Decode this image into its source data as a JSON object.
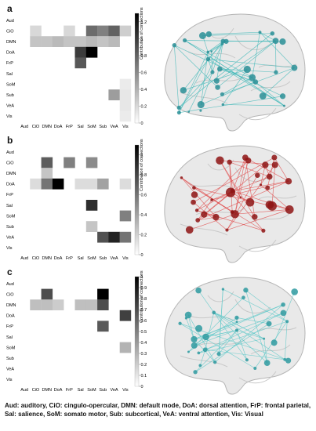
{
  "regions": [
    "Aud",
    "CiO",
    "DMN",
    "DoA",
    "FrP",
    "Sal",
    "SoM",
    "Sub",
    "VeA",
    "Vis"
  ],
  "colorbar_title": "Contribution of connections",
  "panels": [
    {
      "letter": "a",
      "ticks": [
        "0",
        "0.2",
        "0.4",
        "0.6",
        "0.8",
        "1",
        "1.2"
      ],
      "vmax": 1.3,
      "edge_color": "#3fb8b8",
      "node_color": "#2a8f96",
      "matrix": [
        [
          0,
          0,
          0,
          0,
          0,
          0,
          0,
          0,
          0,
          0
        ],
        [
          0,
          0.2,
          0,
          0,
          0.2,
          0,
          0.75,
          0.65,
          0.8,
          0.25
        ],
        [
          0,
          0.3,
          0.3,
          0.35,
          0.3,
          0.3,
          0.35,
          0.3,
          0.35,
          0
        ],
        [
          0,
          0,
          0,
          0,
          0,
          1.0,
          1.3,
          0,
          0,
          0
        ],
        [
          0,
          0,
          0,
          0,
          0,
          0.85,
          0,
          0,
          0,
          0
        ],
        [
          0,
          0,
          0,
          0,
          0,
          0,
          0,
          0,
          0,
          0
        ],
        [
          0,
          0,
          0,
          0,
          0,
          0,
          0,
          0,
          0,
          0.1
        ],
        [
          0,
          0,
          0,
          0,
          0,
          0,
          0,
          0,
          0.5,
          0.12
        ],
        [
          0,
          0,
          0,
          0,
          0,
          0,
          0,
          0,
          0,
          0.12
        ],
        [
          0,
          0,
          0,
          0,
          0,
          0,
          0,
          0,
          0,
          0.1
        ]
      ]
    },
    {
      "letter": "b",
      "ticks": [
        "0",
        "0.2",
        "0.4",
        "0.6",
        "0.8",
        "1"
      ],
      "vmax": 1.1,
      "edge_color": "#e04848",
      "node_color": "#8e1414",
      "matrix": [
        [
          0,
          0,
          0,
          0,
          0,
          0,
          0,
          0,
          0,
          0
        ],
        [
          0,
          0,
          0.7,
          0,
          0.55,
          0,
          0.5,
          0,
          0,
          0
        ],
        [
          0,
          0,
          0.25,
          0,
          0,
          0,
          0,
          0,
          0,
          0
        ],
        [
          0,
          0.15,
          0.6,
          1.1,
          0,
          0.15,
          0.15,
          0.4,
          0,
          0.15
        ],
        [
          0,
          0,
          0,
          0,
          0,
          0,
          0,
          0,
          0,
          0
        ],
        [
          0,
          0,
          0,
          0,
          0,
          0,
          0.9,
          0,
          0,
          0
        ],
        [
          0,
          0,
          0,
          0,
          0,
          0,
          0,
          0,
          0,
          0.55
        ],
        [
          0,
          0,
          0,
          0,
          0,
          0,
          0.25,
          0,
          0,
          0
        ],
        [
          0,
          0,
          0,
          0,
          0,
          0,
          0,
          0.75,
          0.95,
          0.6
        ],
        [
          0,
          0,
          0,
          0,
          0,
          0,
          0,
          0,
          0,
          0
        ]
      ]
    },
    {
      "letter": "c",
      "ticks": [
        "0",
        "0.1",
        "0.2",
        "0.3",
        "0.4",
        "0.5",
        "0.6",
        "0.7",
        "0.8",
        "0.9",
        "1"
      ],
      "vmax": 1.0,
      "edge_color": "#5cc8c8",
      "node_color": "#2e9aa0",
      "matrix": [
        [
          0,
          0,
          0,
          0,
          0,
          0,
          0,
          0,
          0,
          0
        ],
        [
          0,
          0,
          0.7,
          0,
          0,
          0,
          0,
          1.0,
          0,
          0
        ],
        [
          0,
          0.25,
          0.25,
          0.2,
          0,
          0.25,
          0.25,
          0.7,
          0,
          0
        ],
        [
          0,
          0,
          0,
          0,
          0,
          0,
          0,
          0,
          0,
          0.75
        ],
        [
          0,
          0,
          0,
          0,
          0,
          0,
          0,
          0.65,
          0,
          0
        ],
        [
          0,
          0,
          0,
          0,
          0,
          0,
          0,
          0,
          0,
          0
        ],
        [
          0,
          0,
          0,
          0,
          0,
          0,
          0,
          0,
          0,
          0.3
        ],
        [
          0,
          0,
          0,
          0,
          0,
          0,
          0,
          0,
          0,
          0
        ],
        [
          0,
          0,
          0,
          0,
          0,
          0,
          0,
          0,
          0,
          0
        ],
        [
          0,
          0,
          0,
          0,
          0,
          0,
          0,
          0,
          0,
          0
        ]
      ]
    }
  ],
  "caption": "Aud: auditory, CiO: cingulo-opercular, DMN: default mode, DoA: dorsal attention, FrP: frontal parietal, Sal: salience, SoM: somato motor, Sub: subcortical, VeA: ventral attention, Vis: Visual"
}
